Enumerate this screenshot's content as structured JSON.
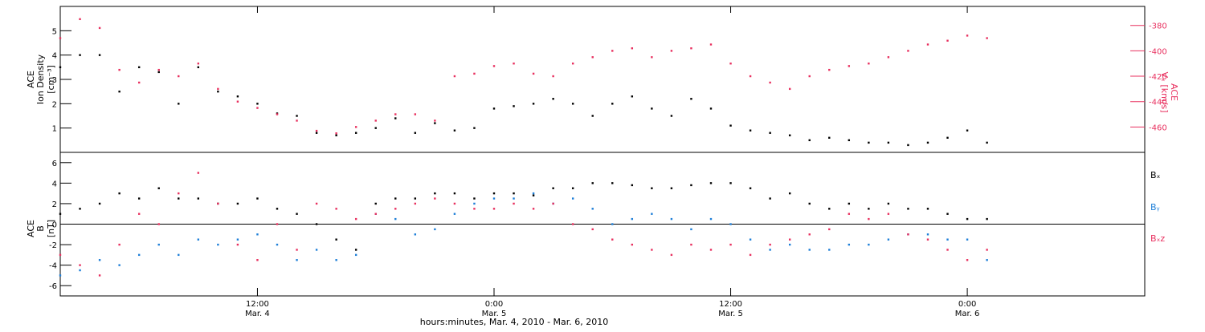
{
  "figure": {
    "x_label": "hours:minutes, Mar.  4, 2010 - Mar.  6, 2010",
    "x_range_hours": [
      0,
      55
    ],
    "x_ticks": [
      {
        "hours": 10,
        "time": "12:00",
        "date": "Mar. 4"
      },
      {
        "hours": 22,
        "time": "0:00",
        "date": "Mar. 5"
      },
      {
        "hours": 34,
        "time": "12:00",
        "date": "Mar. 5"
      },
      {
        "hours": 46,
        "time": "0:00",
        "date": "Mar. 6"
      }
    ],
    "colors": {
      "black": "#000000",
      "pink": "#e8305f",
      "blue": "#1e7fd8"
    }
  },
  "chart_data": [
    {
      "type": "scatter",
      "panel": "density",
      "left_axis": {
        "label_lines": [
          "ACE",
          "Ion Density",
          "[cm⁻³]"
        ],
        "ticks": [
          1,
          2,
          3,
          4,
          5
        ],
        "ylim": [
          0,
          6
        ]
      },
      "right_axis": {
        "label_lines": [
          "ACE",
          "Vₓ [km/s]"
        ],
        "ticks": [
          -380,
          -400,
          -420,
          -440,
          -460
        ],
        "ylim": [
          -480,
          -365
        ]
      },
      "series": [
        {
          "color": "#000000",
          "axis": "left",
          "x": [
            0,
            1,
            2,
            3,
            4,
            5,
            6,
            7,
            8,
            9,
            10,
            11,
            12,
            13,
            14,
            15,
            16,
            17,
            18,
            19,
            20,
            21,
            22,
            23,
            24,
            25,
            26,
            27,
            28,
            29,
            30,
            31,
            32,
            33,
            34,
            35,
            36,
            37,
            38,
            39,
            40,
            41,
            42,
            43,
            44,
            45,
            46,
            47
          ],
          "y": [
            3.5,
            4.0,
            4.0,
            2.5,
            3.5,
            3.3,
            2.0,
            3.5,
            2.5,
            2.3,
            2.0,
            1.6,
            1.5,
            0.8,
            0.7,
            0.8,
            1.0,
            1.4,
            0.8,
            1.2,
            0.9,
            1.0,
            1.8,
            1.9,
            2.0,
            2.2,
            2.0,
            1.5,
            2.0,
            2.3,
            1.8,
            1.5,
            2.2,
            1.8,
            1.1,
            0.9,
            0.8,
            0.7,
            0.5,
            0.6,
            0.5,
            0.4,
            0.4,
            0.3,
            0.4,
            0.6,
            0.9,
            0.4
          ]
        },
        {
          "color": "#e8305f",
          "axis": "right",
          "x": [
            0,
            1,
            2,
            3,
            4,
            5,
            6,
            7,
            8,
            9,
            10,
            11,
            12,
            13,
            14,
            15,
            16,
            17,
            18,
            19,
            20,
            21,
            22,
            23,
            24,
            25,
            26,
            27,
            28,
            29,
            30,
            31,
            32,
            33,
            34,
            35,
            36,
            37,
            38,
            39,
            40,
            41,
            42,
            43,
            44,
            45,
            46,
            47
          ],
          "y": [
            -390,
            -375,
            -382,
            -415,
            -425,
            -415,
            -420,
            -410,
            -430,
            -440,
            -445,
            -450,
            -455,
            -463,
            -465,
            -460,
            -455,
            -450,
            -450,
            -455,
            -420,
            -418,
            -412,
            -410,
            -418,
            -420,
            -410,
            -405,
            -400,
            -398,
            -405,
            -400,
            -398,
            -395,
            -410,
            -420,
            -425,
            -430,
            -420,
            -415,
            -412,
            -410,
            -405,
            -400,
            -395,
            -392,
            -388,
            -390
          ]
        }
      ]
    },
    {
      "type": "scatter",
      "panel": "magnetic-field",
      "left_axis": {
        "label_lines": [
          "ACE",
          "B",
          "[nT]"
        ],
        "ticks": [
          6,
          4,
          2,
          0,
          -2,
          -4,
          -6
        ],
        "ylim": [
          -7,
          7
        ]
      },
      "legend": [
        "Bₓ",
        "Bᵧ",
        "Bₓz"
      ],
      "series": [
        {
          "name": "Bₓ",
          "color": "#000000",
          "x": [
            0,
            1,
            2,
            3,
            4,
            5,
            6,
            7,
            8,
            9,
            10,
            11,
            12,
            13,
            14,
            15,
            16,
            17,
            18,
            19,
            20,
            21,
            22,
            23,
            24,
            25,
            26,
            27,
            28,
            29,
            30,
            31,
            32,
            33,
            34,
            35,
            36,
            37,
            38,
            39,
            40,
            41,
            42,
            43,
            44,
            45,
            46,
            47
          ],
          "y": [
            1.0,
            1.5,
            2.0,
            3.0,
            2.5,
            3.5,
            2.5,
            2.5,
            2.0,
            2.0,
            2.5,
            1.5,
            1.0,
            0.0,
            -1.5,
            -2.5,
            2.0,
            2.5,
            2.5,
            3.0,
            3.0,
            2.5,
            3.0,
            3.0,
            2.8,
            3.5,
            3.5,
            4.0,
            4.0,
            3.8,
            3.5,
            3.5,
            3.8,
            4.0,
            4.0,
            3.5,
            2.5,
            3.0,
            2.0,
            1.5,
            2.0,
            1.5,
            2.0,
            1.5,
            1.5,
            1.0,
            0.5,
            0.5
          ]
        },
        {
          "name": "Bᵧ",
          "color": "#1e7fd8",
          "x": [
            0,
            1,
            2,
            3,
            4,
            5,
            6,
            7,
            8,
            9,
            10,
            11,
            12,
            13,
            14,
            15,
            16,
            17,
            18,
            19,
            20,
            21,
            22,
            23,
            24,
            25,
            26,
            27,
            28,
            29,
            30,
            31,
            32,
            33,
            34,
            35,
            36,
            37,
            38,
            39,
            40,
            41,
            42,
            43,
            44,
            45,
            46,
            47
          ],
          "y": [
            -5.0,
            -4.5,
            -3.5,
            -4.0,
            -3.0,
            -2.0,
            -3.0,
            -1.5,
            -2.0,
            -1.5,
            -1.0,
            -2.0,
            -3.5,
            -2.5,
            -3.5,
            -3.0,
            1.0,
            0.5,
            -1.0,
            -0.5,
            1.0,
            2.0,
            2.5,
            2.5,
            3.0,
            2.0,
            2.5,
            1.5,
            0.0,
            0.5,
            1.0,
            0.5,
            -0.5,
            0.5,
            0.0,
            -1.5,
            -2.5,
            -2.0,
            -2.5,
            -2.5,
            -2.0,
            -2.0,
            -1.5,
            -1.0,
            -1.0,
            -1.5,
            -1.5,
            -3.5
          ]
        },
        {
          "name": "Bₓz",
          "color": "#e8305f",
          "x": [
            0,
            1,
            2,
            3,
            4,
            5,
            6,
            7,
            8,
            9,
            10,
            11,
            12,
            13,
            14,
            15,
            16,
            17,
            18,
            19,
            20,
            21,
            22,
            23,
            24,
            25,
            26,
            27,
            28,
            29,
            30,
            31,
            32,
            33,
            34,
            35,
            36,
            37,
            38,
            39,
            40,
            41,
            42,
            43,
            44,
            45,
            46,
            47
          ],
          "y": [
            -3.0,
            -4.0,
            -5.0,
            -2.0,
            1.0,
            0.0,
            3.0,
            5.0,
            2.0,
            -2.0,
            -3.5,
            0.0,
            -2.5,
            2.0,
            1.5,
            0.5,
            1.0,
            1.5,
            2.0,
            2.5,
            2.0,
            1.5,
            1.5,
            2.0,
            1.5,
            2.0,
            0.0,
            -0.5,
            -1.5,
            -2.0,
            -2.5,
            -3.0,
            -2.0,
            -2.5,
            -2.0,
            -3.0,
            -2.0,
            -1.5,
            -1.0,
            -0.5,
            1.0,
            0.5,
            1.0,
            -1.0,
            -1.5,
            -2.5,
            -3.5,
            -2.5
          ]
        }
      ]
    }
  ]
}
